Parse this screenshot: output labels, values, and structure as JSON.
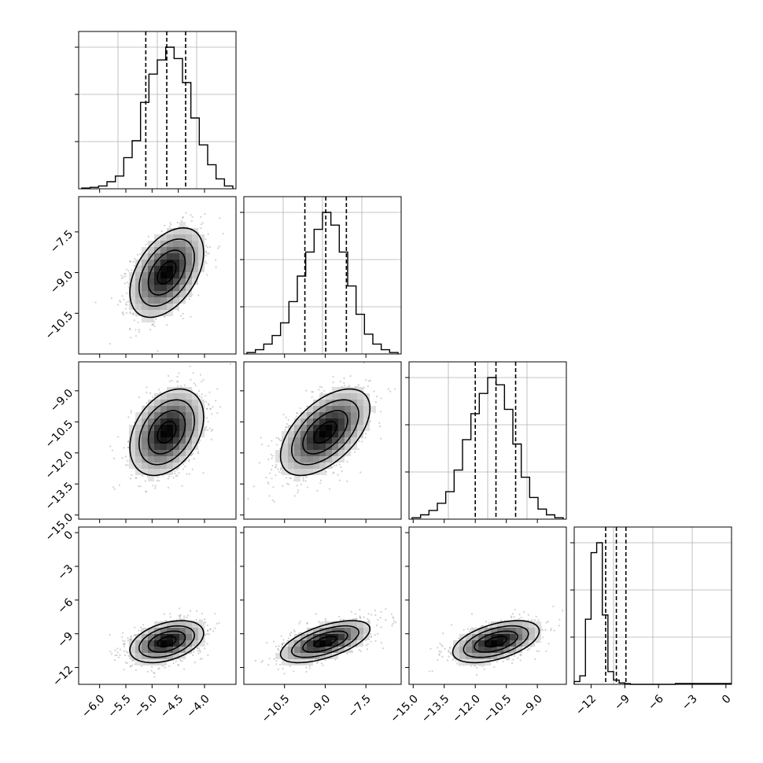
{
  "chart_data": {
    "type": "corner",
    "n_params": 4,
    "params": [
      {
        "range": [
          -6.4,
          -3.4
        ],
        "center": -4.72,
        "std": 0.32,
        "quantiles": [
          -5.12,
          -4.72,
          -4.36
        ],
        "ticks": [
          -6.0,
          -5.5,
          -5.0,
          -4.5,
          -4.0
        ],
        "tick_labels": [
          "−6.0",
          "−5.5",
          "−5.0",
          "−4.5",
          "−4.0"
        ],
        "hist": [
          0.005,
          0.01,
          0.02,
          0.05,
          0.09,
          0.22,
          0.34,
          0.61,
          0.81,
          0.91,
          1.0,
          0.92,
          0.75,
          0.5,
          0.31,
          0.17,
          0.07,
          0.02
        ]
      },
      {
        "range": [
          -12.0,
          -6.2
        ],
        "center": -9.0,
        "std": 0.75,
        "quantiles": [
          -9.75,
          -8.98,
          -8.22
        ],
        "ticks": [
          -10.5,
          -9.0,
          -7.5
        ],
        "tick_labels": [
          "−10.5",
          "−9.0",
          "−7.5"
        ],
        "hist": [
          0.01,
          0.03,
          0.07,
          0.13,
          0.22,
          0.37,
          0.55,
          0.72,
          0.88,
          1.0,
          0.91,
          0.72,
          0.48,
          0.28,
          0.14,
          0.07,
          0.03,
          0.01
        ]
      },
      {
        "range": [
          -15.2,
          -7.6
        ],
        "center": -11.0,
        "std": 0.95,
        "quantiles": [
          -12.0,
          -11.0,
          -10.05
        ],
        "ticks": [
          -15.0,
          -13.5,
          -12.0,
          -10.5,
          -9.0
        ],
        "tick_labels": [
          "−15.0",
          "−13.5",
          "−12.0",
          "−10.5",
          "−9.0"
        ],
        "hist": [
          0.01,
          0.03,
          0.06,
          0.11,
          0.19,
          0.34,
          0.55,
          0.73,
          0.87,
          0.98,
          0.93,
          0.76,
          0.52,
          0.29,
          0.15,
          0.07,
          0.03,
          0.01
        ]
      },
      {
        "range": [
          -13.5,
          0.5
        ],
        "center": -9.7,
        "std": 0.85,
        "quantiles": [
          -10.7,
          -9.75,
          -8.9
        ],
        "ticks": [
          -12,
          -9,
          -6,
          -3,
          0
        ],
        "tick_labels": [
          "−12",
          "−9",
          "−6",
          "−3",
          "0"
        ],
        "hist": [
          0.02,
          0.06,
          0.46,
          0.93,
          1.0,
          0.49,
          0.09,
          0.03,
          0.01,
          0.005,
          0,
          0,
          0,
          0,
          0,
          0,
          0,
          0
        ]
      }
    ],
    "correlations": {
      "1-0": 0.45,
      "2-0": 0.35,
      "2-1": 0.55,
      "3-0": 0.4,
      "3-1": 0.6,
      "3-2": 0.5
    },
    "y_ticks": [
      null,
      {
        "values": [
          -10.5,
          -9.0,
          -7.5
        ],
        "labels": [
          "−10.5",
          "−9.0",
          "−7.5"
        ]
      },
      {
        "values": [
          -15.0,
          -13.5,
          -12.0,
          -10.5,
          -9.0
        ],
        "labels": [
          "−15.0",
          "−13.5",
          "−12.0",
          "−10.5",
          "−9.0"
        ]
      },
      {
        "values": [
          -12,
          -9,
          -6,
          -3,
          0
        ],
        "labels": [
          "−12",
          "−9",
          "−6",
          "−3",
          "0"
        ]
      }
    ],
    "contour_levels_sigma": [
      0.5,
      1.0,
      1.5,
      2.0
    ],
    "grid": true,
    "quantiles_shown": [
      0.16,
      0.5,
      0.84
    ]
  }
}
